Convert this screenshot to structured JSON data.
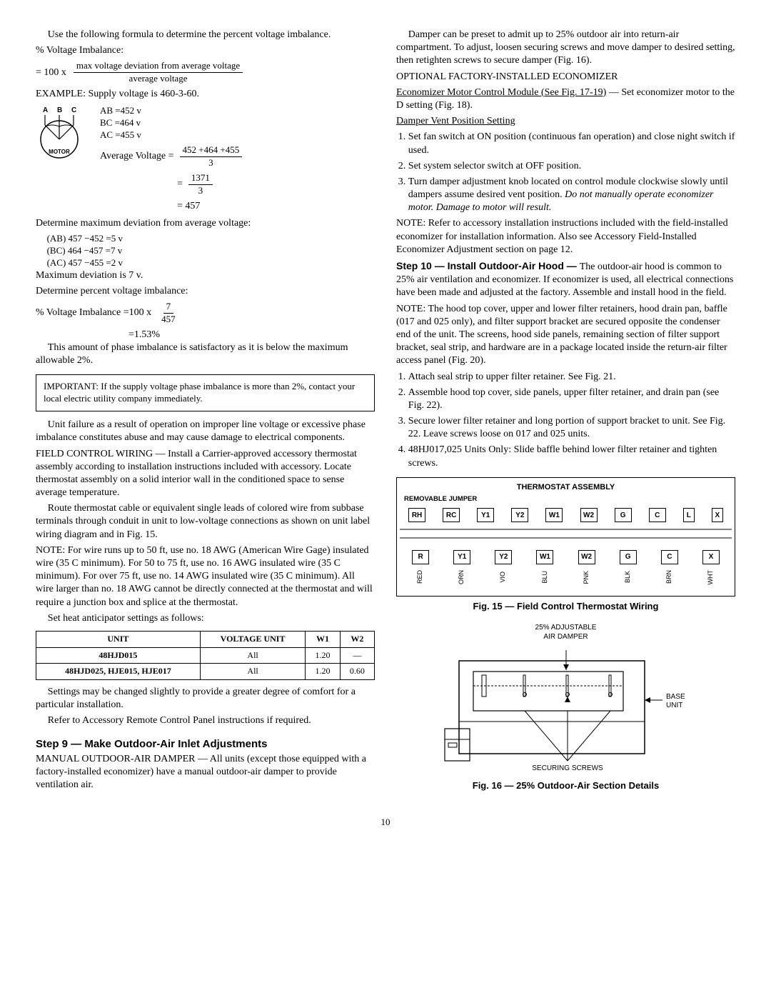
{
  "left": {
    "intro": "Use the following formula to determine the percent voltage imbalance.",
    "pvi_label": "% Voltage Imbalance:",
    "eq_prefix": "=  100  x",
    "eq_num": "max voltage deviation from average voltage",
    "eq_den": "average voltage",
    "example_label": "EXAMPLE: Supply voltage is 460-3-60.",
    "ab": "AB  =452  v",
    "bc": "BC  =464  v",
    "ac": "AC  =455  v",
    "avg_label": "Average Voltage  =",
    "avg_num": "452 +464 +455",
    "avg_den": "3",
    "avg_eq2": "=",
    "avg_num2": "1371",
    "avg_den2": "3",
    "avg_result": "=  457",
    "det_max": "Determine maximum deviation from average voltage:",
    "dev_ab": "(AB)  457  −452  =5  v",
    "dev_bc": "(BC)  464  −457  =7  v",
    "dev_ac": "(AC)  457  −455  =2  v",
    "max_dev": "Maximum deviation is 7 v.",
    "det_pct": "Determine percent voltage imbalance:",
    "pvi_eq_prefix": "% Voltage Imbalance  =100  x",
    "pvi_num": "7",
    "pvi_den": "457",
    "pvi_result": "=1.53%",
    "satisfactory": "This amount of phase imbalance is satisfactory as it is below the maximum allowable 2%.",
    "important": "IMPORTANT:  If the supply voltage phase imbalance is more than 2%, contact your local electric utility company immediately.",
    "unit_failure": "Unit failure as a result of operation on improper line voltage or excessive phase imbalance constitutes abuse and may cause damage to electrical components.",
    "fcw_head": "FIELD CONTROL WIRING — ",
    "fcw_body": "Install a Carrier-approved accessory thermostat assembly according to installation instructions included with accessory. Locate thermostat assembly on a solid interior wall in the conditioned space to sense average temperature.",
    "route": "Route thermostat cable or equivalent single leads of colored wire from subbase terminals through conduit in unit to low-voltage connections as shown on unit label wiring diagram and in Fig. 15.",
    "note_wire": "NOTE:  For wire runs up to 50 ft, use no. 18 AWG (American Wire Gage) insulated wire (35 C minimum). For 50 to 75 ft, use no. 16 AWG insulated wire (35 C minimum). For over 75 ft, use no. 14 AWG insulated wire (35 C minimum). All wire larger than no. 18 AWG cannot be directly connected at the thermostat and will require a junction box and splice at the thermostat.",
    "set_heat": "Set heat anticipator settings as follows:",
    "table": {
      "headers": [
        "UNIT",
        "VOLTAGE UNIT",
        "W1",
        "W2"
      ],
      "rows": [
        [
          "48HJD015",
          "All",
          "1.20",
          "—"
        ],
        [
          "48HJD025, HJE015, HJE017",
          "All",
          "1.20",
          "0.60"
        ]
      ]
    },
    "settings_note": "Settings may be changed slightly to provide a greater degree of comfort for a particular installation.",
    "refer_remote": "Refer to Accessory Remote Control Panel instructions if required.",
    "step9_title": "Step 9 — Make Outdoor-Air Inlet Adjustments",
    "step9_head": "MANUAL OUTDOOR-AIR DAMPER — ",
    "step9_body": "All units (except those equipped with a factory-installed economizer) have a manual outdoor-air damper to provide ventilation air."
  },
  "right": {
    "damper_preset": "Damper can be preset to admit up to 25% outdoor air into return-air compartment. To adjust, loosen securing screws and move damper to desired setting, then retighten screws to secure damper (Fig. 16).",
    "opt_econ": "OPTIONAL FACTORY-INSTALLED ECONOMIZER",
    "econ_module": "Economizer Motor Control Module (See Fig. 17-19)",
    "econ_module_rest": "  — Set economizer motor to the D setting (Fig. 18).",
    "damper_vent": "Damper Vent Position Setting",
    "dvps": [
      "Set fan switch at ON position (continuous fan operation) and close night switch if used.",
      "Set system selector switch at OFF position.",
      "Turn damper adjustment knob located on control module clockwise slowly until dampers assume desired vent position. "
    ],
    "dvps3_italic": "Do not manually operate economizer motor. Damage to motor will result.",
    "note_accessory": "NOTE: Refer to accessory installation instructions included with the field-installed economizer for installation information. Also see Accessory Field-Installed Economizer Adjustment section on page 12.",
    "step10_title": "Step 10 — Install Outdoor-Air Hood — ",
    "step10_body": "The outdoor-air hood is common to 25% air ventilation and economizer. If economizer is used, all electrical connections have been made and adjusted at the factory. Assemble and install hood in the field.",
    "note_hood": "NOTE:  The hood top cover, upper and lower filter retainers, hood drain pan, baffle (017 and 025 only), and filter support bracket are secured opposite the condenser end of the unit. The screens, hood side panels, remaining section of filter support bracket, seal strip, and hardware are in a package located inside the return-air filter access panel (Fig. 20).",
    "hood_steps": [
      "Attach seal strip to upper filter retainer. See Fig. 21.",
      "Assemble hood top cover, side panels, upper filter retainer, and drain pan (see Fig. 22).",
      "Secure lower filter retainer and long portion of support bracket to unit. See Fig. 22. Leave screws loose on 017 and 025 units.",
      "48HJ017,025 Units Only: Slide baffle behind lower filter retainer and tighten screws."
    ],
    "thermo_title": "THERMOSTAT ASSEMBLY",
    "jumper_label": "REMOVABLE JUMPER",
    "row1": [
      "RH",
      "RC",
      "Y1",
      "Y2",
      "W1",
      "W2",
      "G",
      "C",
      "L",
      "X"
    ],
    "row2": [
      "R",
      "Y1",
      "Y2",
      "W1",
      "W2",
      "G",
      "C",
      "X"
    ],
    "row3": [
      "RED",
      "ORN",
      "VIO",
      "BLU",
      "PNK",
      "BLK",
      "BRN",
      "WHT"
    ],
    "fig15": "Fig. 15 — Field Control Thermostat Wiring",
    "damper_top": "25% ADJUSTABLE\nAIR DAMPER",
    "base_unit": "BASE\nUNIT",
    "securing": "SECURING SCREWS",
    "fig16": "Fig. 16 — 25% Outdoor-Air Section Details"
  },
  "page_num": "10"
}
